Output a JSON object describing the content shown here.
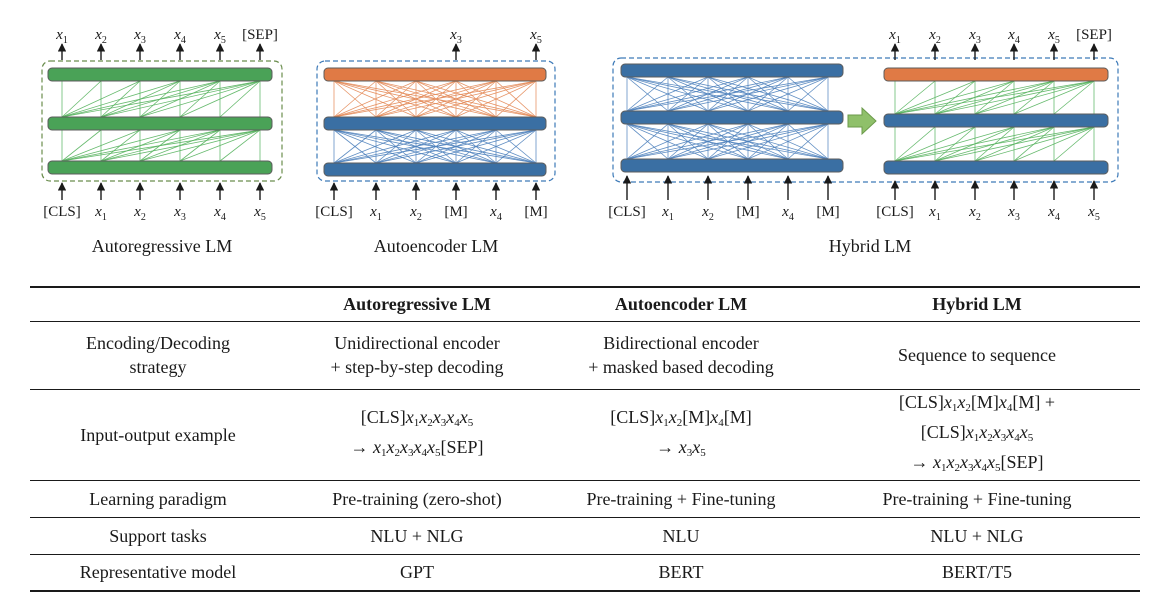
{
  "colors": {
    "green_bar": "#4aa257",
    "green_line": "#57b35f",
    "orange_bar": "#e07a45",
    "orange_line": "#e48a58",
    "blue_bar": "#3a6fa3",
    "blue_line": "#4f82bd",
    "dash_green": "#6b8e4e",
    "dash_blue": "#3d7ab8",
    "arrow_fill": "#8fc06a"
  },
  "diagram": {
    "autoregressive": {
      "caption": "Autoregressive LM",
      "inputs": [
        {
          "t": "[CLS]",
          "s": ""
        },
        {
          "t": "x",
          "s": "1"
        },
        {
          "t": "x",
          "s": "2"
        },
        {
          "t": "x",
          "s": "3"
        },
        {
          "t": "x",
          "s": "4"
        },
        {
          "t": "x",
          "s": "5"
        }
      ],
      "outputs": [
        {
          "t": "x",
          "s": "1"
        },
        {
          "t": "x",
          "s": "2"
        },
        {
          "t": "x",
          "s": "3"
        },
        {
          "t": "x",
          "s": "4"
        },
        {
          "t": "x",
          "s": "5"
        },
        {
          "t": "[SEP]",
          "s": ""
        }
      ]
    },
    "autoencoder": {
      "caption": "Autoencoder LM",
      "inputs": [
        {
          "t": "[CLS]",
          "s": ""
        },
        {
          "t": "x",
          "s": "1"
        },
        {
          "t": "x",
          "s": "2"
        },
        {
          "t": "[M]",
          "s": ""
        },
        {
          "t": "x",
          "s": "4"
        },
        {
          "t": "[M]",
          "s": ""
        }
      ],
      "outputs": [
        {
          "t": "x",
          "s": "3"
        },
        {
          "t": "x",
          "s": "5"
        }
      ]
    },
    "hybrid": {
      "caption": "Hybrid LM",
      "encoder_inputs": [
        {
          "t": "[CLS]",
          "s": ""
        },
        {
          "t": "x",
          "s": "1"
        },
        {
          "t": "x",
          "s": "2"
        },
        {
          "t": "[M]",
          "s": ""
        },
        {
          "t": "x",
          "s": "4"
        },
        {
          "t": "[M]",
          "s": ""
        }
      ],
      "decoder_inputs": [
        {
          "t": "[CLS]",
          "s": ""
        },
        {
          "t": "x",
          "s": "1"
        },
        {
          "t": "x",
          "s": "2"
        },
        {
          "t": "x",
          "s": "3"
        },
        {
          "t": "x",
          "s": "4"
        },
        {
          "t": "x",
          "s": "5"
        }
      ],
      "outputs": [
        {
          "t": "x",
          "s": "1"
        },
        {
          "t": "x",
          "s": "2"
        },
        {
          "t": "x",
          "s": "3"
        },
        {
          "t": "x",
          "s": "4"
        },
        {
          "t": "x",
          "s": "5"
        },
        {
          "t": "[SEP]",
          "s": ""
        }
      ]
    }
  },
  "table": {
    "headers": [
      "",
      "Autoregressive LM",
      "Autoencoder LM",
      "Hybrid LM"
    ],
    "enc_row": {
      "label": [
        "Encoding/Decoding",
        "strategy"
      ],
      "a": [
        "Unidirectional encoder",
        "+ step-by-step decoding"
      ],
      "b": [
        "Bidirectional encoder",
        "+ masked based decoding"
      ],
      "c": "Sequence to sequence"
    },
    "io_row": {
      "label": "Input-output example"
    },
    "learning": {
      "label": "Learning paradigm",
      "a": "Pre-training (zero-shot)",
      "b": "Pre-training + Fine-tuning",
      "c": "Pre-training + Fine-tuning"
    },
    "tasks": {
      "label": "Support tasks",
      "a": "NLU + NLG",
      "b": "NLU",
      "c": "NLU + NLG"
    },
    "model": {
      "label": "Representative model",
      "a": "GPT",
      "b": "BERT",
      "c": "BERT/T5"
    }
  }
}
